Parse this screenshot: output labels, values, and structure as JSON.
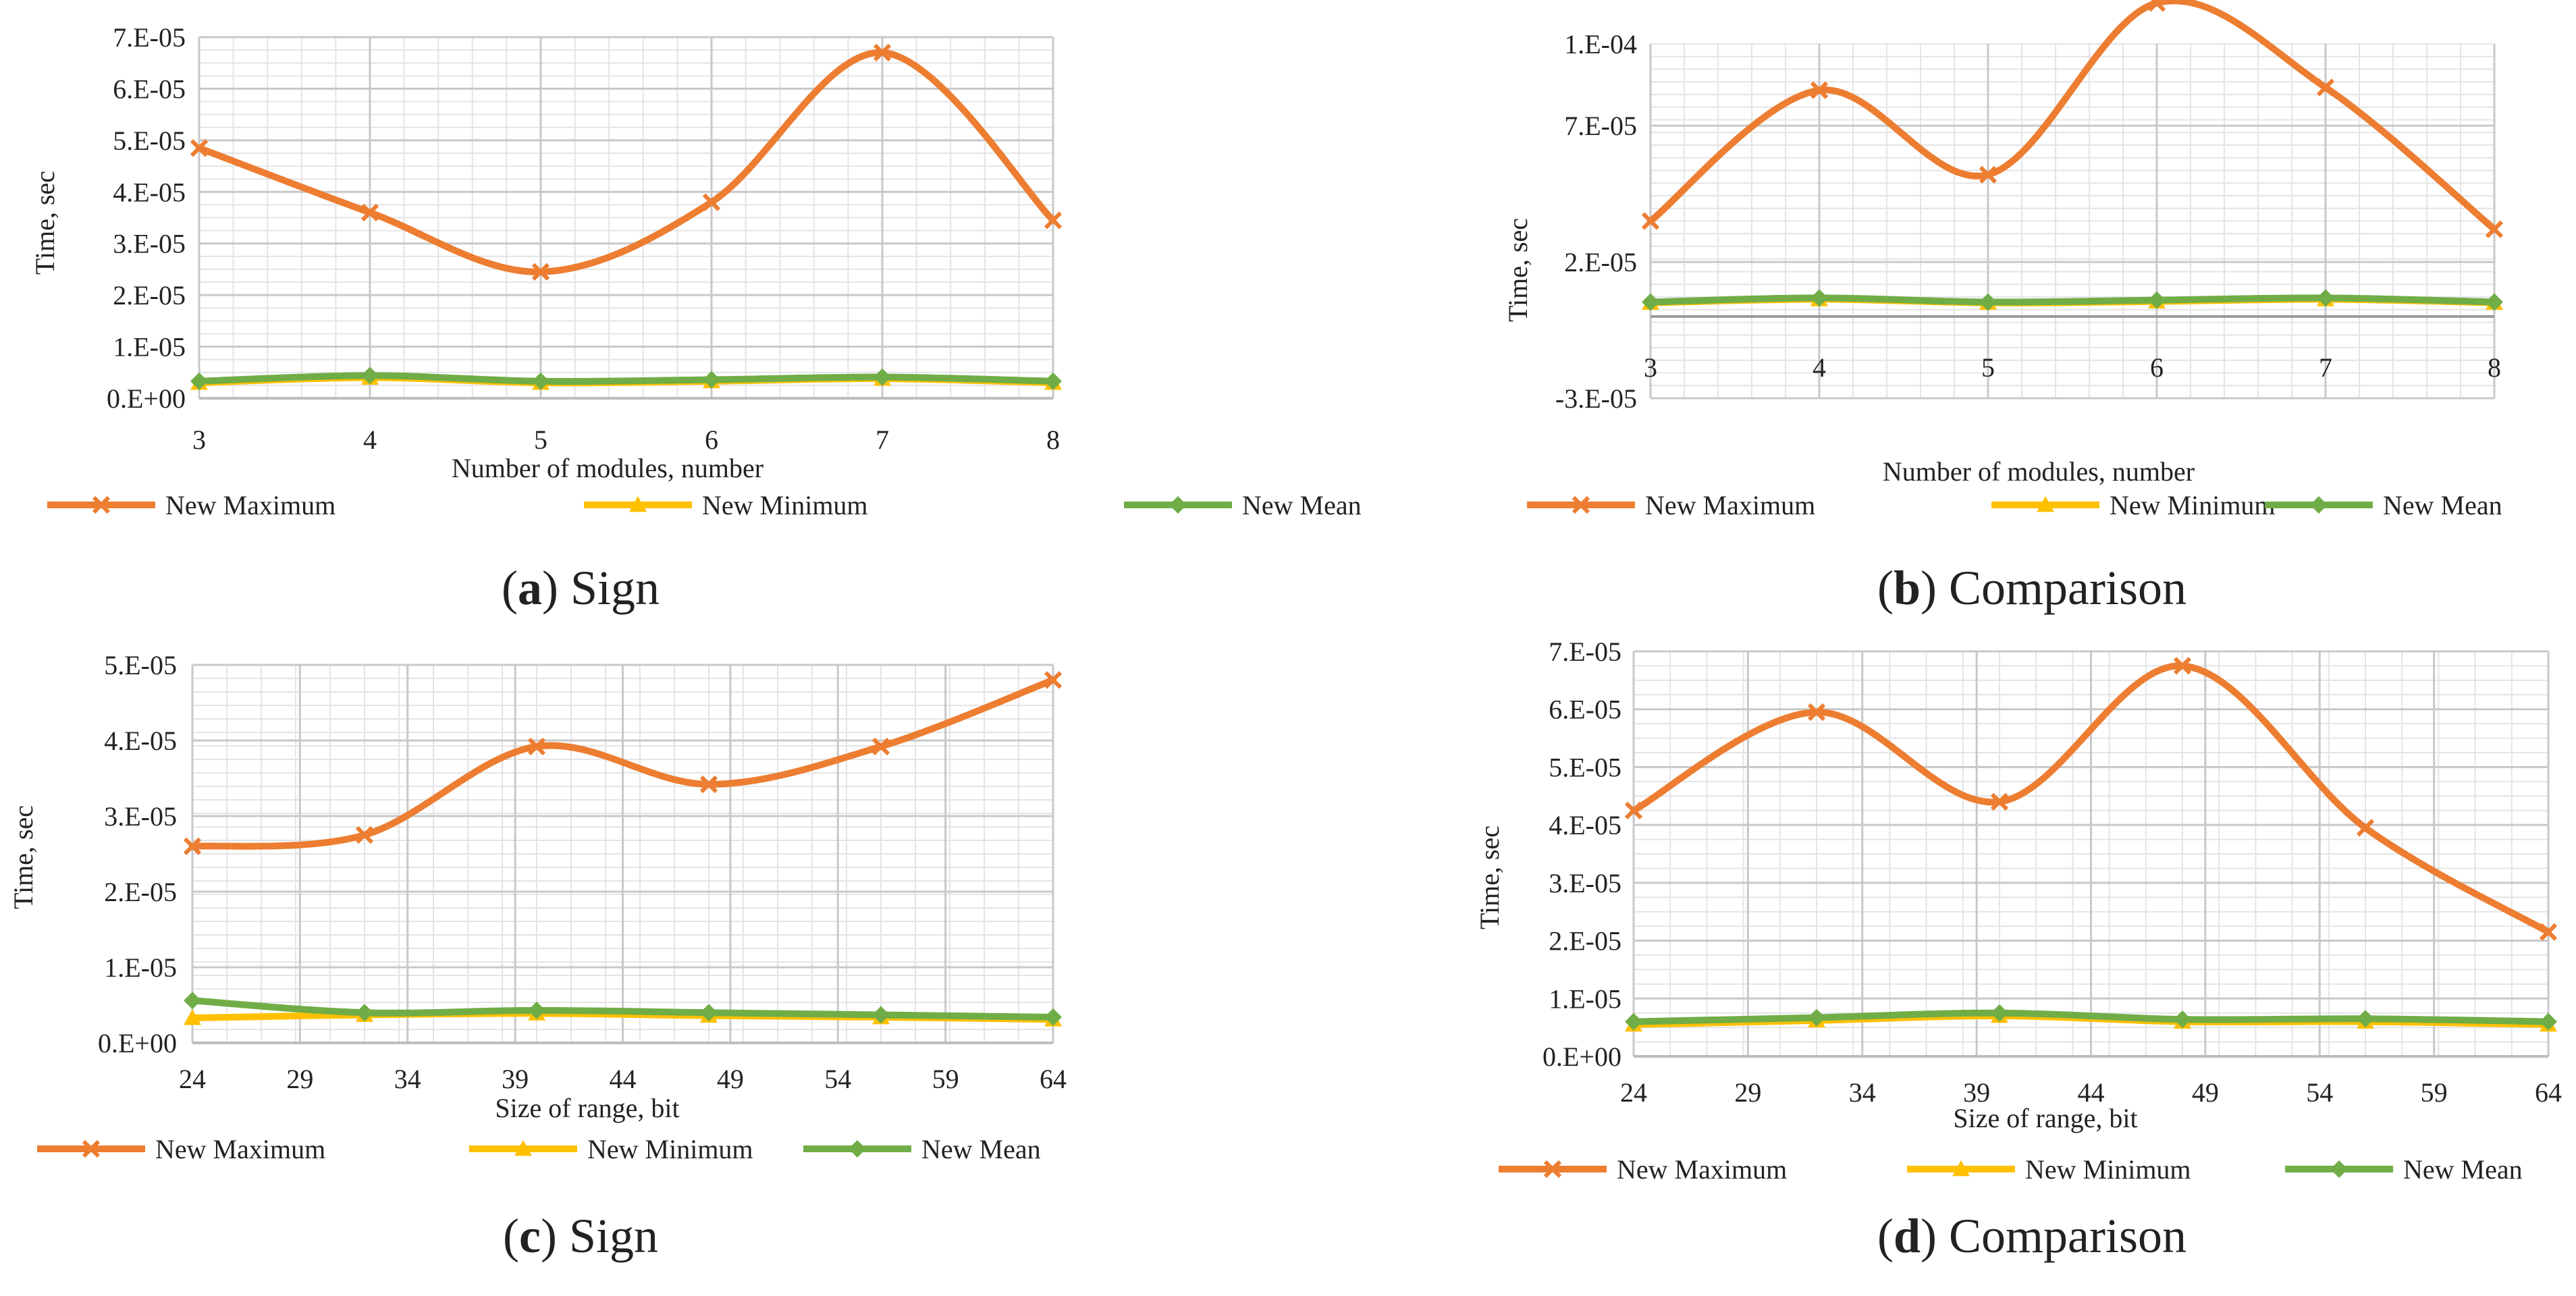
{
  "colors": {
    "max": "#ED7D31",
    "min": "#FFC000",
    "mean": "#70AD47",
    "grid_major": "#c8c8c8",
    "grid_minor": "#e4e4e4",
    "axis": "#bdbdbd"
  },
  "chart_data": [
    {
      "id": "a",
      "type": "line",
      "caption_letter": "a",
      "caption_text": " Sign",
      "xlabel": "Number of modules, number",
      "ylabel": "Time, sec",
      "x": [
        3,
        4,
        5,
        6,
        7,
        8
      ],
      "x_ticks": [
        "3",
        "4",
        "5",
        "6",
        "7",
        "8"
      ],
      "ylim": [
        0,
        7e-05
      ],
      "y_ticks": [
        "0.E+00",
        "1.E-05",
        "2.E-05",
        "3.E-05",
        "4.E-05",
        "5.E-05",
        "6.E-05",
        "7.E-05"
      ],
      "series": [
        {
          "name": "New Maximum",
          "key": "max",
          "marker": "x",
          "values": [
            4.85e-05,
            3.6e-05,
            2.45e-05,
            3.8e-05,
            6.7e-05,
            3.45e-05
          ]
        },
        {
          "name": "New Minimum",
          "key": "min",
          "marker": "triangle",
          "values": [
            3e-06,
            4e-06,
            3e-06,
            3.3e-06,
            3.8e-06,
            3e-06
          ]
        },
        {
          "name": "New Mean",
          "key": "mean",
          "marker": "diamond",
          "values": [
            3.3e-06,
            4.4e-06,
            3.3e-06,
            3.6e-06,
            4.1e-06,
            3.3e-06
          ]
        }
      ]
    },
    {
      "id": "b",
      "type": "line",
      "caption_letter": "b",
      "caption_text": " Comparison",
      "xlabel": "Number of modules, number",
      "ylabel": "Time, sec",
      "x": [
        3,
        4,
        5,
        6,
        7,
        8
      ],
      "x_ticks": [
        "3",
        "4",
        "5",
        "6",
        "7",
        "8"
      ],
      "ylim": [
        -3e-05,
        0.0001
      ],
      "y_ticks": [
        "-3.E-05",
        "2.E-05",
        "7.E-05",
        "1.E-04"
      ],
      "y_tick_values": [
        -3e-05,
        2e-05,
        7e-05,
        0.00012
      ],
      "series": [
        {
          "name": "New Maximum",
          "key": "max",
          "marker": "x",
          "values": [
            3.5e-05,
            8.3e-05,
            5.2e-05,
            0.000115,
            8.4e-05,
            3.2e-05
          ]
        },
        {
          "name": "New Minimum",
          "key": "min",
          "marker": "triangle",
          "values": [
            5e-06,
            6.3e-06,
            5e-06,
            5.5e-06,
            6.3e-06,
            5e-06
          ]
        },
        {
          "name": "New Mean",
          "key": "mean",
          "marker": "diamond",
          "values": [
            5.3e-06,
            6.8e-06,
            5.3e-06,
            6e-06,
            6.8e-06,
            5.3e-06
          ]
        }
      ]
    },
    {
      "id": "c",
      "type": "line",
      "caption_letter": "c",
      "caption_text": " Sign",
      "xlabel": "Size of range, bit",
      "ylabel": "Time, sec",
      "x": [
        24,
        32,
        40,
        48,
        56,
        64
      ],
      "x_ticks": [
        "24",
        "29",
        "34",
        "39",
        "44",
        "49",
        "54",
        "59",
        "64"
      ],
      "x_tick_values": [
        24,
        29,
        34,
        39,
        44,
        49,
        54,
        59,
        64
      ],
      "ylim": [
        0,
        5e-05
      ],
      "y_ticks": [
        "0.E+00",
        "1.E-05",
        "2.E-05",
        "3.E-05",
        "4.E-05",
        "5.E-05"
      ],
      "series": [
        {
          "name": "New Maximum",
          "key": "max",
          "marker": "x",
          "values": [
            2.6e-05,
            2.75e-05,
            3.92e-05,
            3.42e-05,
            3.92e-05,
            4.8e-05
          ]
        },
        {
          "name": "New Minimum",
          "key": "min",
          "marker": "triangle",
          "values": [
            3.3e-06,
            3.7e-06,
            3.9e-06,
            3.6e-06,
            3.4e-06,
            3.1e-06
          ]
        },
        {
          "name": "New Mean",
          "key": "mean",
          "marker": "diamond",
          "values": [
            5.6e-06,
            4e-06,
            4.3e-06,
            4e-06,
            3.7e-06,
            3.4e-06
          ]
        }
      ]
    },
    {
      "id": "d",
      "type": "line",
      "caption_letter": "d",
      "caption_text": " Comparison",
      "xlabel": "Size of range, bit",
      "ylabel": "Time, sec",
      "x": [
        24,
        32,
        40,
        48,
        56,
        64
      ],
      "x_ticks": [
        "24",
        "29",
        "34",
        "39",
        "44",
        "49",
        "54",
        "59",
        "64"
      ],
      "x_tick_values": [
        24,
        29,
        34,
        39,
        44,
        49,
        54,
        59,
        64
      ],
      "ylim": [
        0,
        7e-05
      ],
      "y_ticks": [
        "0.E+00",
        "1.E-05",
        "2.E-05",
        "3.E-05",
        "4.E-05",
        "5.E-05",
        "6.E-05",
        "7.E-05"
      ],
      "series": [
        {
          "name": "New Maximum",
          "key": "max",
          "marker": "x",
          "values": [
            4.25e-05,
            5.95e-05,
            4.4e-05,
            6.75e-05,
            3.95e-05,
            2.15e-05
          ]
        },
        {
          "name": "New Minimum",
          "key": "min",
          "marker": "triangle",
          "values": [
            5.5e-06,
            6.2e-06,
            7e-06,
            6e-06,
            6e-06,
            5.5e-06
          ]
        },
        {
          "name": "New Mean",
          "key": "mean",
          "marker": "diamond",
          "values": [
            6e-06,
            6.7e-06,
            7.5e-06,
            6.4e-06,
            6.5e-06,
            6e-06
          ]
        }
      ]
    }
  ]
}
